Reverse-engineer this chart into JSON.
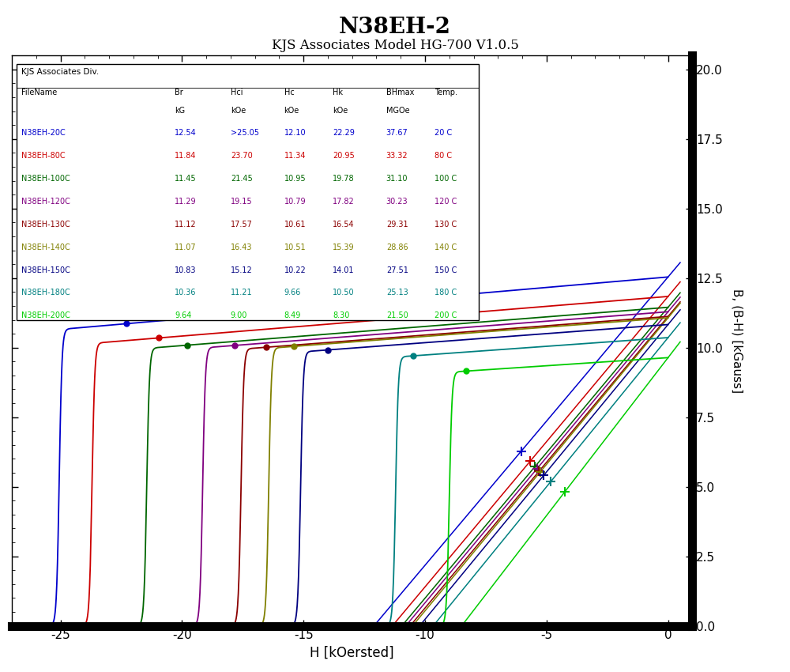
{
  "title": "N38EH-2",
  "subtitle": "KJS Associates Model HG-700 V1.0.5",
  "xlabel": "H [kOersted]",
  "ylabel": "B, (B-H) [kGauss]",
  "xlim": [
    -27,
    1
  ],
  "ylim": [
    0,
    20.5
  ],
  "background_color": "#ffffff",
  "plot_bg_color": "#ffffff",
  "curves": [
    {
      "label": "N38EH-20C",
      "color": "#0000cc",
      "Br": 12.54,
      "Hci": 25.05,
      "Hc": 12.1,
      "Hk": 22.29,
      "BHmax": 37.67,
      "Br_str": "12.54",
      "Hci_str": ">25.05",
      "Hc_str": "12.10",
      "Hk_str": "22.29",
      "BHmax_str": "37.67",
      "Temp_str": "20 C"
    },
    {
      "label": "N38EH-80C",
      "color": "#cc0000",
      "Br": 11.84,
      "Hci": 23.7,
      "Hc": 11.34,
      "Hk": 20.95,
      "BHmax": 33.32,
      "Br_str": "11.84",
      "Hci_str": "23.70",
      "Hc_str": "11.34",
      "Hk_str": "20.95",
      "BHmax_str": "33.32",
      "Temp_str": "80 C"
    },
    {
      "label": "N38EH-100C",
      "color": "#006600",
      "Br": 11.45,
      "Hci": 21.45,
      "Hc": 10.95,
      "Hk": 19.78,
      "BHmax": 31.1,
      "Br_str": "11.45",
      "Hci_str": "21.45",
      "Hc_str": "10.95",
      "Hk_str": "19.78",
      "BHmax_str": "31.10",
      "Temp_str": "100 C"
    },
    {
      "label": "N38EH-120C",
      "color": "#800080",
      "Br": 11.29,
      "Hci": 19.15,
      "Hc": 10.79,
      "Hk": 17.82,
      "BHmax": 30.23,
      "Br_str": "11.29",
      "Hci_str": "19.15",
      "Hc_str": "10.79",
      "Hk_str": "17.82",
      "BHmax_str": "30.23",
      "Temp_str": "120 C"
    },
    {
      "label": "N38EH-130C",
      "color": "#8b0000",
      "Br": 11.12,
      "Hci": 17.57,
      "Hc": 10.61,
      "Hk": 16.54,
      "BHmax": 29.31,
      "Br_str": "11.12",
      "Hci_str": "17.57",
      "Hc_str": "10.61",
      "Hk_str": "16.54",
      "BHmax_str": "29.31",
      "Temp_str": "130 C"
    },
    {
      "label": "N38EH-140C",
      "color": "#808000",
      "Br": 11.07,
      "Hci": 16.43,
      "Hc": 10.51,
      "Hk": 15.39,
      "BHmax": 28.86,
      "Br_str": "11.07",
      "Hci_str": "16.43",
      "Hc_str": "10.51",
      "Hk_str": "15.39",
      "BHmax_str": "28.86",
      "Temp_str": "140 C"
    },
    {
      "label": "N38EH-150C",
      "color": "#000080",
      "Br": 10.83,
      "Hci": 15.12,
      "Hc": 10.22,
      "Hk": 14.01,
      "BHmax": 27.51,
      "Br_str": "10.83",
      "Hci_str": "15.12",
      "Hc_str": "10.22",
      "Hk_str": "14.01",
      "BHmax_str": "27.51",
      "Temp_str": "150 C"
    },
    {
      "label": "N38EH-180C",
      "color": "#008080",
      "Br": 10.36,
      "Hci": 11.21,
      "Hc": 9.66,
      "Hk": 10.5,
      "BHmax": 25.13,
      "Br_str": "10.36",
      "Hci_str": "11.21",
      "Hc_str": "9.66",
      "Hk_str": "10.50",
      "BHmax_str": "25.13",
      "Temp_str": "180 C"
    },
    {
      "label": "N38EH-200C",
      "color": "#00cc00",
      "Br": 9.64,
      "Hci": 9.0,
      "Hc": 8.49,
      "Hk": 8.3,
      "BHmax": 21.5,
      "Br_str": "9.64",
      "Hci_str": "9.00",
      "Hc_str": "8.49",
      "Hk_str": "8.30",
      "BHmax_str": "21.50",
      "Temp_str": "200 C"
    }
  ]
}
